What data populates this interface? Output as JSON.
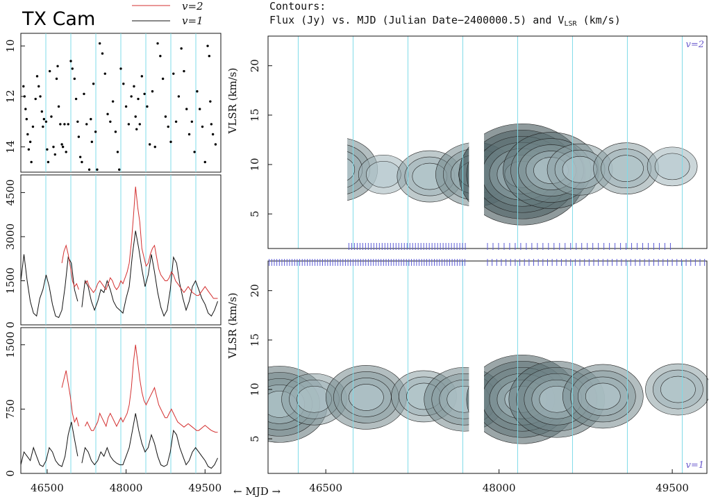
{
  "header": {
    "title": "TX Cam",
    "legend_v2": "v=2",
    "legend_v1": "v=1",
    "contours_line1": "Contours:",
    "contours_line2": "Flux (Jy) vs. MJD (Julian  Date−2400000.5) and V",
    "contours_sub": "LSR",
    "contours_tail": " (km/s)",
    "mjd_arrow": "← MJD →"
  },
  "colors": {
    "v2_line": "#d32f2f",
    "v1_line": "#111111",
    "phase_lines": "#7fdbe8",
    "obs_ticks": "#5b5bd6",
    "contour_fill_dark": "#2f4f4f",
    "contour_fill_light": "#dbe6ea",
    "corner_labels": "#6a5acd"
  },
  "chart_data": [
    {
      "type": "scatter",
      "title": "",
      "ylabel": "",
      "ylim": [
        15,
        9.5
      ],
      "yticks": [
        "10",
        "12",
        "14"
      ],
      "xlim": [
        46000,
        49800
      ],
      "x": [
        46050,
        46070,
        46090,
        46110,
        46130,
        46150,
        46180,
        46200,
        46230,
        46280,
        46310,
        46340,
        46370,
        46400,
        46420,
        46440,
        46480,
        46500,
        46520,
        46550,
        46580,
        46620,
        46650,
        46680,
        46700,
        46720,
        46750,
        46780,
        46800,
        46830,
        46860,
        46900,
        46950,
        46980,
        47020,
        47050,
        47080,
        47100,
        47130,
        47160,
        47200,
        47250,
        47300,
        47330,
        47350,
        47380,
        47420,
        47450,
        47500,
        47550,
        47600,
        47650,
        47700,
        47750,
        47800,
        47840,
        47870,
        47900,
        47950,
        48000,
        48050,
        48100,
        48150,
        48180,
        48200,
        48230,
        48260,
        48300,
        48350,
        48400,
        48450,
        48500,
        48550,
        48600,
        48650,
        48700,
        48750,
        48800,
        48850,
        48900,
        48950,
        49000,
        49050,
        49100,
        49150,
        49200,
        49250,
        49300,
        49350,
        49400,
        49450,
        49500,
        49550,
        49580,
        49600,
        49620,
        49650,
        49700
      ],
      "y": [
        11.6,
        12.0,
        12.5,
        12.9,
        13.5,
        14.1,
        13.8,
        14.6,
        13.2,
        12.1,
        11.2,
        11.6,
        12.0,
        12.6,
        13.2,
        12.9,
        13.0,
        14.1,
        14.6,
        11.0,
        12.8,
        14.0,
        14.3,
        11.3,
        10.8,
        12.4,
        13.1,
        13.9,
        14.0,
        13.1,
        14.2,
        13.1,
        10.6,
        10.9,
        11.3,
        12.1,
        13.0,
        13.6,
        14.4,
        14.6,
        11.9,
        13.1,
        14.9,
        12.9,
        13.8,
        11.5,
        13.4,
        14.9,
        9.9,
        10.3,
        11.1,
        12.7,
        13.0,
        12.2,
        13.4,
        14.2,
        14.9,
        10.9,
        11.5,
        12.4,
        13.1,
        12.0,
        11.6,
        12.8,
        13.3,
        12.1,
        13.1,
        11.2,
        11.9,
        12.4,
        13.9,
        11.8,
        14.0,
        9.9,
        10.4,
        11.3,
        12.8,
        13.2,
        13.8,
        11.1,
        13.0,
        12.0,
        10.1,
        11.0,
        12.5,
        13.5,
        13.0,
        14.2,
        11.8,
        12.5,
        13.2,
        14.6,
        10.0,
        10.4,
        12.2,
        13.1,
        13.5,
        13.9
      ]
    },
    {
      "type": "line",
      "title": "",
      "ylabel": "",
      "ylim": [
        0,
        5100
      ],
      "yticks": [
        "0",
        "1500",
        "3000",
        "4500"
      ],
      "xlim": [
        46000,
        49800
      ],
      "series": [
        {
          "name": "v=1",
          "x": [
            46000,
            46060,
            46120,
            46180,
            46240,
            46300,
            46360,
            46420,
            46480,
            46540,
            46600,
            46660,
            46720,
            46780,
            46840,
            46900,
            46960,
            47020,
            47080,
            47120,
            47160,
            47220,
            47280,
            47340,
            47400,
            47460,
            47520,
            47580,
            47640,
            47700,
            47760,
            47820,
            47880,
            47940,
            48000,
            48060,
            48120,
            48180,
            48240,
            48300,
            48360,
            48420,
            48480,
            48540,
            48600,
            48660,
            48720,
            48780,
            48840,
            48900,
            48960,
            49020,
            49080,
            49140,
            49200,
            49260,
            49320,
            49380,
            49440,
            49500,
            49560,
            49620,
            49680,
            49740
          ],
          "y": [
            1500,
            2400,
            1500,
            800,
            400,
            300,
            900,
            1200,
            1700,
            1300,
            700,
            300,
            250,
            500,
            1300,
            2300,
            2100,
            1200,
            800,
            null,
            600,
            1500,
            1300,
            800,
            500,
            800,
            1200,
            1100,
            1500,
            1200,
            800,
            600,
            500,
            400,
            900,
            1300,
            2400,
            3200,
            2600,
            1900,
            1300,
            1700,
            2400,
            1800,
            1100,
            600,
            300,
            500,
            1200,
            2300,
            2100,
            1400,
            900,
            500,
            800,
            1300,
            1500,
            1200,
            900,
            700,
            400,
            300,
            500,
            800
          ]
        },
        {
          "name": "v=2",
          "x": [
            46780,
            46820,
            46860,
            46900,
            46940,
            46980,
            47020,
            47060,
            47100,
            47140,
            47180,
            47220,
            47260,
            47300,
            47340,
            47380,
            47420,
            47460,
            47500,
            47540,
            47580,
            47620,
            47660,
            47700,
            47740,
            47780,
            47820,
            47860,
            47900,
            47940,
            47980,
            48020,
            48060,
            48100,
            48140,
            48180,
            48220,
            48260,
            48300,
            48340,
            48380,
            48420,
            48460,
            48500,
            48540,
            48580,
            48620,
            48660,
            48700,
            48740,
            48780,
            48820,
            48860,
            48900,
            48940,
            48980,
            49020,
            49060,
            49100,
            49140,
            49180,
            49220,
            49260,
            49300,
            49340,
            49380,
            49420,
            49460,
            49500,
            49540,
            49580,
            49620,
            49660,
            49700,
            49740
          ],
          "y": [
            2100,
            2500,
            2700,
            2400,
            2000,
            1500,
            1300,
            1400,
            1200,
            null,
            null,
            1400,
            1500,
            1300,
            1200,
            1100,
            1200,
            1400,
            1500,
            1400,
            1300,
            1200,
            1400,
            1600,
            1500,
            1300,
            1200,
            1300,
            1500,
            1400,
            1600,
            1800,
            2100,
            2800,
            3700,
            4700,
            4000,
            3500,
            2600,
            2300,
            2000,
            2100,
            2400,
            2600,
            2700,
            2300,
            1900,
            1700,
            1600,
            1500,
            1500,
            1600,
            1800,
            1700,
            1500,
            1400,
            1300,
            1200,
            1100,
            1200,
            1300,
            1200,
            1100,
            1050,
            1000,
            1000,
            1100,
            1200,
            1300,
            1200,
            1100,
            1000,
            900,
            900,
            900
          ]
        }
      ]
    },
    {
      "type": "line",
      "title": "",
      "ylabel": "",
      "ylim": [
        0,
        1700
      ],
      "yticks": [
        "0",
        "750",
        "1500"
      ],
      "xlim": [
        46000,
        49800
      ],
      "xticks": [
        "46500",
        "48000",
        "49500"
      ],
      "series": [
        {
          "name": "v=1",
          "x": [
            46000,
            46060,
            46120,
            46180,
            46240,
            46300,
            46360,
            46420,
            46480,
            46540,
            46600,
            46660,
            46720,
            46780,
            46840,
            46900,
            46960,
            47020,
            47080,
            47120,
            47160,
            47220,
            47280,
            47340,
            47400,
            47460,
            47520,
            47580,
            47640,
            47700,
            47760,
            47820,
            47880,
            47940,
            48000,
            48060,
            48120,
            48180,
            48240,
            48300,
            48360,
            48420,
            48480,
            48540,
            48600,
            48660,
            48720,
            48780,
            48840,
            48900,
            48960,
            49020,
            49080,
            49140,
            49200,
            49260,
            49320,
            49380,
            49440,
            49500,
            49560,
            49620,
            49680,
            49740
          ],
          "y": [
            100,
            250,
            200,
            150,
            300,
            200,
            100,
            80,
            150,
            300,
            250,
            150,
            100,
            80,
            200,
            450,
            600,
            400,
            200,
            null,
            120,
            300,
            250,
            150,
            100,
            150,
            250,
            200,
            300,
            200,
            150,
            120,
            100,
            100,
            200,
            300,
            500,
            700,
            500,
            350,
            250,
            300,
            450,
            350,
            200,
            100,
            80,
            100,
            250,
            500,
            450,
            300,
            200,
            100,
            150,
            250,
            300,
            250,
            200,
            150,
            80,
            60,
            100,
            180
          ]
        },
        {
          "name": "v=2",
          "x": [
            46780,
            46820,
            46860,
            46900,
            46940,
            46980,
            47020,
            47060,
            47100,
            47140,
            47180,
            47220,
            47260,
            47300,
            47340,
            47380,
            47420,
            47460,
            47500,
            47540,
            47580,
            47620,
            47660,
            47700,
            47740,
            47780,
            47820,
            47860,
            47900,
            47940,
            47980,
            48020,
            48060,
            48100,
            48140,
            48180,
            48220,
            48260,
            48300,
            48340,
            48380,
            48420,
            48460,
            48500,
            48540,
            48580,
            48620,
            48660,
            48700,
            48740,
            48780,
            48820,
            48860,
            48900,
            48940,
            48980,
            49020,
            49060,
            49100,
            49140,
            49180,
            49220,
            49260,
            49300,
            49340,
            49380,
            49420,
            49460,
            49500,
            49540,
            49580,
            49620,
            49660,
            49700,
            49740
          ],
          "y": [
            1000,
            1100,
            1200,
            1050,
            900,
            700,
            600,
            650,
            550,
            null,
            null,
            550,
            600,
            550,
            500,
            500,
            550,
            600,
            700,
            650,
            600,
            550,
            650,
            700,
            650,
            600,
            550,
            600,
            650,
            600,
            650,
            700,
            800,
            1000,
            1300,
            1500,
            1300,
            1100,
            950,
            850,
            800,
            850,
            900,
            950,
            1000,
            900,
            800,
            750,
            700,
            650,
            650,
            700,
            750,
            700,
            650,
            600,
            580,
            560,
            540,
            560,
            580,
            560,
            540,
            520,
            500,
            500,
            520,
            540,
            560,
            540,
            520,
            500,
            490,
            480,
            480
          ]
        }
      ]
    },
    {
      "type": "heatmap",
      "title": "Contours: Flux (Jy) vs. MJD (Julian  Date−2400000.5) and VLSR (km/s)",
      "label": "v=2",
      "ylabel": "VLSR (km/s)",
      "ylim": [
        1.5,
        23
      ],
      "yticks": [
        "5",
        "10",
        "15",
        "20"
      ],
      "xlim": [
        46000,
        49800
      ],
      "peaks": [
        {
          "mjd": 46600,
          "vlsr": 9.5,
          "level": 4
        },
        {
          "mjd": 47000,
          "vlsr": 9.0,
          "level": 2
        },
        {
          "mjd": 47400,
          "vlsr": 8.8,
          "level": 3
        },
        {
          "mjd": 47800,
          "vlsr": 9.0,
          "level": 4
        },
        {
          "mjd": 48200,
          "vlsr": 9.0,
          "level": 7
        },
        {
          "mjd": 48450,
          "vlsr": 9.4,
          "level": 5
        },
        {
          "mjd": 48700,
          "vlsr": 9.5,
          "level": 3
        },
        {
          "mjd": 49100,
          "vlsr": 9.6,
          "level": 3
        },
        {
          "mjd": 49500,
          "vlsr": 9.8,
          "level": 2
        }
      ]
    },
    {
      "type": "heatmap",
      "title": "",
      "label": "v=1",
      "ylabel": "VLSR (km/s)",
      "ylim": [
        1.5,
        23
      ],
      "yticks": [
        "5",
        "10",
        "15",
        "20"
      ],
      "xlim": [
        46000,
        49800
      ],
      "xticks": [
        "46500",
        "48000",
        "49500"
      ],
      "peaks": [
        {
          "mjd": 46100,
          "vlsr": 8.5,
          "level": 5
        },
        {
          "mjd": 46400,
          "vlsr": 9.0,
          "level": 3
        },
        {
          "mjd": 46850,
          "vlsr": 9.2,
          "level": 4
        },
        {
          "mjd": 47350,
          "vlsr": 9.3,
          "level": 3
        },
        {
          "mjd": 47700,
          "vlsr": 9.0,
          "level": 4
        },
        {
          "mjd": 48200,
          "vlsr": 9.0,
          "level": 6
        },
        {
          "mjd": 48500,
          "vlsr": 9.0,
          "level": 5
        },
        {
          "mjd": 48900,
          "vlsr": 9.3,
          "level": 4
        },
        {
          "mjd": 49550,
          "vlsr": 10.0,
          "level": 3
        }
      ]
    }
  ]
}
